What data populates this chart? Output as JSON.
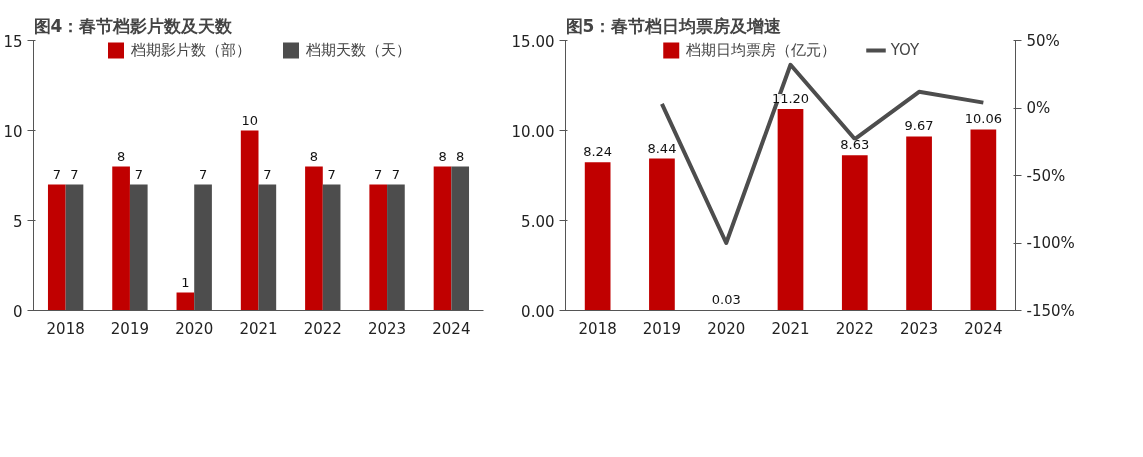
{
  "chart_data": [
    {
      "type": "bar",
      "title": "图4：春节档影片数及天数",
      "categories": [
        "2018",
        "2019",
        "2020",
        "2021",
        "2022",
        "2023",
        "2024"
      ],
      "series": [
        {
          "name": "档期影片数（部）",
          "color": "#c00000",
          "values": [
            7,
            8,
            1,
            10,
            8,
            7,
            8
          ]
        },
        {
          "name": "档期天数（天）",
          "color": "#4d4d4d",
          "values": [
            7,
            7,
            7,
            7,
            7,
            7,
            8
          ]
        }
      ],
      "ylim": [
        0,
        15
      ],
      "yticks": [
        0,
        5,
        10,
        15
      ],
      "data_labels": true,
      "legend": "top",
      "grid": false
    },
    {
      "type": "bar",
      "title": "图5：春节档日均票房及增速",
      "categories": [
        "2018",
        "2019",
        "2020",
        "2021",
        "2022",
        "2023",
        "2024"
      ],
      "series": [
        {
          "name": "档期日均票房（亿元）",
          "color": "#c00000",
          "values": [
            8.24,
            8.44,
            0.03,
            11.2,
            8.63,
            9.67,
            10.06
          ],
          "value_labels": [
            "8.24",
            "8.44",
            "0.03",
            "11.20",
            "8.63",
            "9.67",
            "10.06"
          ]
        },
        {
          "name": "YOY",
          "type": "line",
          "axis": "y2",
          "color": "#4d4d4d",
          "values": [
            null,
            3,
            -100,
            32,
            -23,
            12,
            4
          ]
        }
      ],
      "ylim": [
        0,
        15
      ],
      "yticks": [
        {
          "value": 0,
          "label": "0.00"
        },
        {
          "value": 5,
          "label": "5.00"
        },
        {
          "value": 10,
          "label": "10.00"
        },
        {
          "value": 15,
          "label": "15.00"
        }
      ],
      "y2lim": [
        -150,
        50
      ],
      "y2ticks": [
        {
          "value": -150,
          "label": "-150%"
        },
        {
          "value": -100,
          "label": "-100%"
        },
        {
          "value": -50,
          "label": "-50%"
        },
        {
          "value": 0,
          "label": "0%"
        },
        {
          "value": 50,
          "label": "50%"
        }
      ],
      "legend": "top",
      "grid": false
    }
  ]
}
